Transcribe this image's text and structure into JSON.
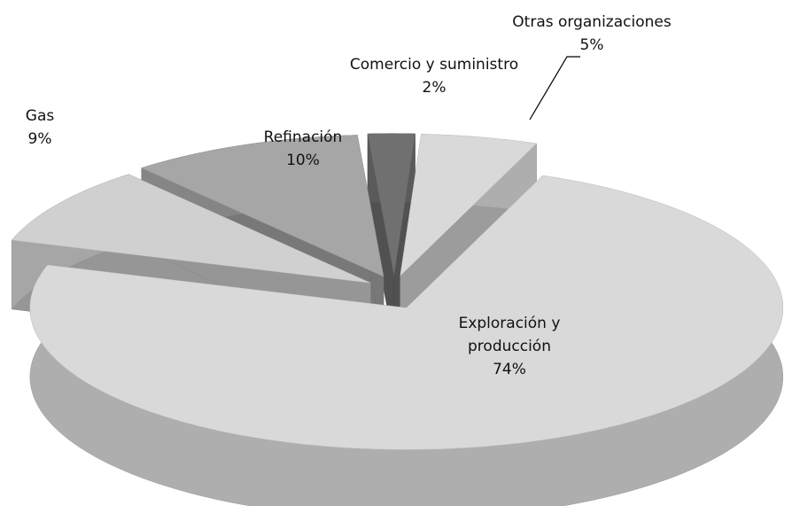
{
  "chart_data": {
    "type": "pie",
    "categories": [
      "Comercio y suministro",
      "Otras organizaciones",
      "Exploración y producción",
      "Gas",
      "Refinación"
    ],
    "values": [
      2,
      5,
      74,
      9,
      10
    ],
    "value_labels": [
      "2%",
      "5%",
      "74%",
      "9%",
      "10%"
    ],
    "colors": [
      "#707070",
      "#d9d9d9",
      "#d9d9d9",
      "#d0d0d0",
      "#a6a6a6"
    ],
    "three_d": true,
    "exploded": true
  }
}
